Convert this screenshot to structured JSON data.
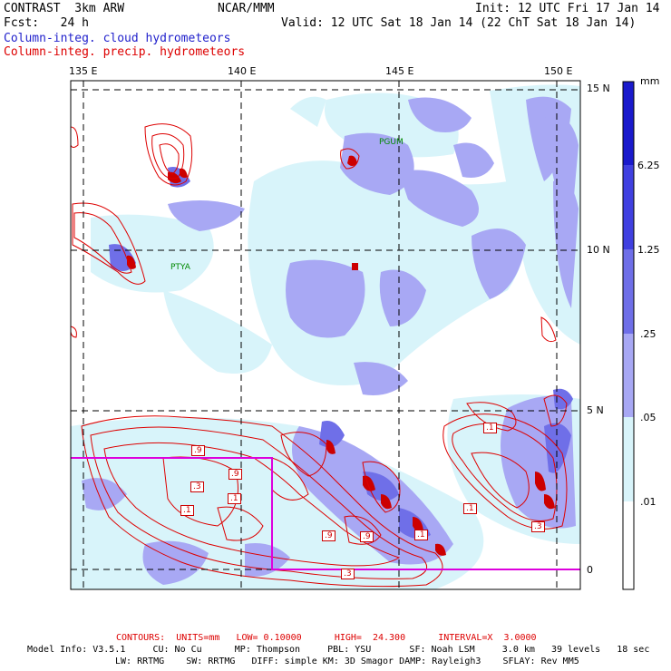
{
  "header": {
    "model": "CONTRAST  3km ARW",
    "org": "NCAR/MMM",
    "init": "Init: 12 UTC Fri 17 Jan 14",
    "fcst": "Fcst:   24 h",
    "valid": "Valid: 12 UTC Sat 18 Jan 14 (22 ChT Sat 18 Jan 14)",
    "field_cloud": "Column-integ. cloud hydrometeors",
    "field_precip": "Column-integ. precip. hydrometeors"
  },
  "axes": {
    "lon_labels": [
      "135 E",
      "140 E",
      "145 E",
      "150 E"
    ],
    "lat_labels": [
      "15 N",
      "10 N",
      "5 N",
      "0"
    ]
  },
  "places": {
    "guam": "PGUM",
    "yap": "PTYA"
  },
  "colorbar": {
    "unit": "mm",
    "levels": [
      "6.25",
      "1.25",
      ".25",
      ".05",
      ".01"
    ],
    "colors": [
      "#1a1acc",
      "#4040e0",
      "#6f6fe8",
      "#a8a8f4",
      "#d8f4fa",
      "#ffffff"
    ]
  },
  "contour_labels": [
    ".9",
    ".3",
    ".9",
    ".1",
    ".1",
    ".9",
    ".9",
    ".1",
    ".3",
    ".1",
    ".1",
    ".3"
  ],
  "footer": {
    "contours": "CONTOURS:  UNITS=mm   LOW= 0.10000      HIGH=  24.300      INTERVAL=X  3.0000",
    "model_info_1": "Model Info: V3.5.1     CU: No Cu      MP: Thompson     PBL: YSU       SF: Noah LSM     3.0 km   39 levels   18 sec",
    "model_info_2": "LW: RRTMG    SW: RRTMG   DIFF: simple KM: 3D Smagor DAMP: Rayleigh3    SFLAY: Rev MM5"
  }
}
